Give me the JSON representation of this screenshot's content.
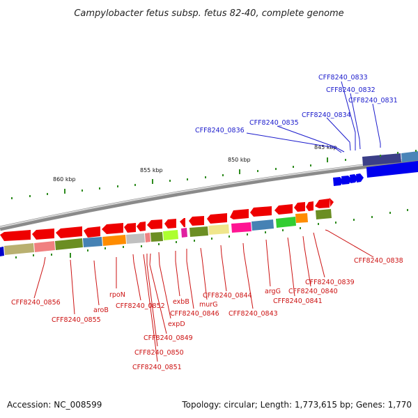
{
  "title": "Campylobacter fetus subsp. fetus 82-40, complete genome",
  "footer": {
    "accession": "Accession: NC_008599",
    "summary": "Topology: circular; Length: 1,773,615 bp; Genes: 1,770"
  },
  "colors": {
    "forward_gene": "#0000ee",
    "reverse_gene": "#ee0000",
    "forward_label": "#1a1acc",
    "reverse_label": "#cc1111",
    "tick": "#2e8b1e",
    "backbone": "#8a8a8a"
  },
  "ticks": [
    {
      "label": "845 kbp"
    },
    {
      "label": "850 kbp"
    },
    {
      "label": "855 kbp"
    },
    {
      "label": "860 kbp"
    }
  ],
  "forward_labels": [
    "CFF8240_0833",
    "CFF8240_0832",
    "CFF8240_0831",
    "CFF8240_0834",
    "CFF8240_0835",
    "CFF8240_0836"
  ],
  "reverse_labels": [
    "CFF8240_0856",
    "CFF8240_0855",
    "aroB",
    "rpoN",
    "CFF8240_0852",
    "CFF8240_0851",
    "CFF8240_0850",
    "CFF8240_0849",
    "expD",
    "exbB",
    "CFF8240_0846",
    "murG",
    "CFF8240_0844",
    "CFF8240_0843",
    "argG",
    "CFF8240_0841",
    "CFF8240_0840",
    "CFF8240_0839",
    "CFF8240_0838"
  ]
}
